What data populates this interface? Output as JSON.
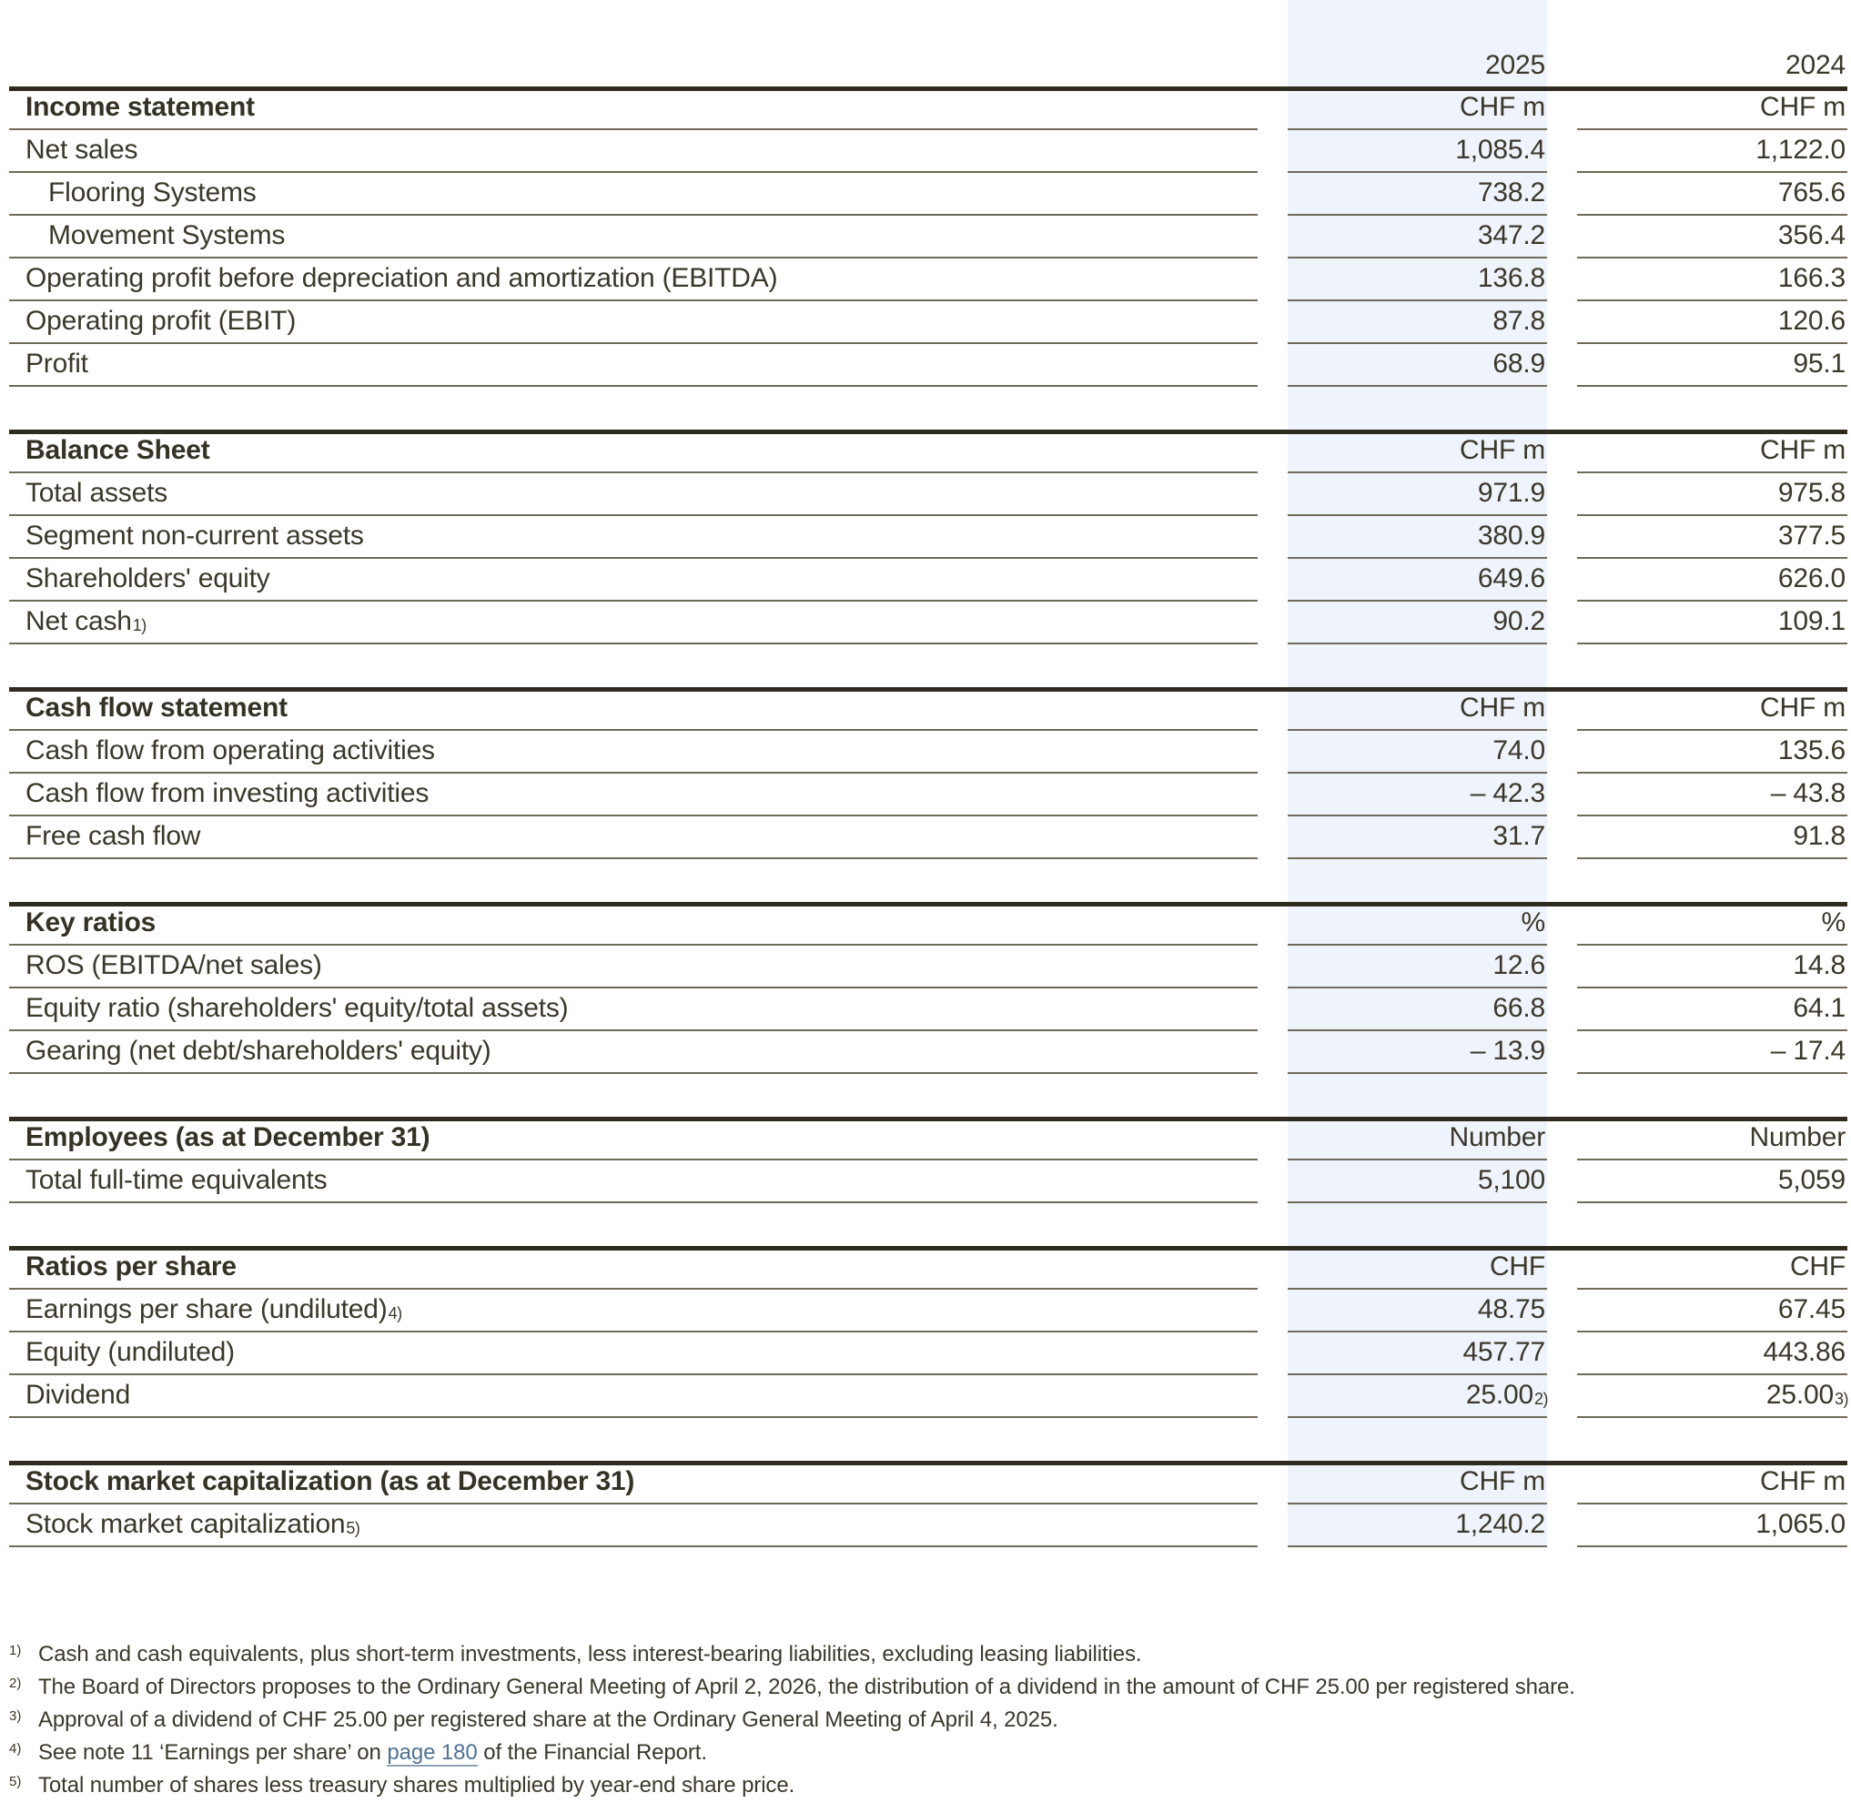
{
  "page": {
    "columns": {
      "year_2025": "2025",
      "year_2024": "2024"
    },
    "sections": [
      {
        "title": "Income statement",
        "unit": "CHF m",
        "rows": [
          {
            "label": "Net sales",
            "v2025": "1,085.4",
            "v2024": "1,122.0"
          },
          {
            "label": "Flooring Systems",
            "v2025": "738.2",
            "v2024": "765.6"
          },
          {
            "label": "Movement Systems",
            "v2025": "347.2",
            "v2024": "356.4"
          },
          {
            "label": "Operating profit before depreciation and amortization (EBITDA)",
            "v2025": "136.8",
            "v2024": "166.3"
          },
          {
            "label": "Operating profit (EBIT)",
            "v2025": "87.8",
            "v2024": "120.6"
          },
          {
            "label": "Profit",
            "v2025": "68.9",
            "v2024": "95.1"
          }
        ]
      },
      {
        "title": "Balance Sheet",
        "unit": "CHF m",
        "rows": [
          {
            "label": "Total assets",
            "v2025": "971.9",
            "v2024": "975.8"
          },
          {
            "label": "Segment non-current assets",
            "v2025": "380.9",
            "v2024": "377.5"
          },
          {
            "label": "Shareholders' equity",
            "v2025": "649.6",
            "v2024": "626.0"
          },
          {
            "label": "Net cash",
            "label_sup": "1)",
            "v2025": "90.2",
            "v2024": "109.1"
          }
        ]
      },
      {
        "title": "Cash flow statement",
        "unit": "CHF m",
        "rows": [
          {
            "label": "Cash flow from operating activities",
            "v2025": "74.0",
            "v2024": "135.6"
          },
          {
            "label": "Cash flow from investing activities",
            "v2025": "– 42.3",
            "v2024": "– 43.8"
          },
          {
            "label": "Free cash flow",
            "v2025": "31.7",
            "v2024": "91.8"
          }
        ]
      },
      {
        "title": "Key ratios",
        "unit": "%",
        "rows": [
          {
            "label": "ROS (EBITDA/net sales)",
            "v2025": "12.6",
            "v2024": "14.8"
          },
          {
            "label": "Equity ratio (shareholders' equity/total assets)",
            "v2025": "66.8",
            "v2024": "64.1"
          },
          {
            "label": "Gearing (net debt/shareholders' equity)",
            "v2025": "– 13.9",
            "v2024": "– 17.4"
          }
        ]
      },
      {
        "title": "Employees (as at December 31)",
        "unit": "Number",
        "rows": [
          {
            "label": "Total full-time equivalents",
            "v2025": "5,100",
            "v2024": "5,059"
          }
        ]
      },
      {
        "title": "Ratios per share",
        "unit": "CHF",
        "rows": [
          {
            "label": "Earnings per share (undiluted)",
            "label_sup": "4)",
            "v2025": "48.75",
            "v2024": "67.45"
          },
          {
            "label": "Equity (undiluted)",
            "v2025": "457.77",
            "v2024": "443.86"
          },
          {
            "label": "Dividend",
            "v2025": "25.00",
            "v2025_sup": "2)",
            "v2024": "25.00",
            "v2024_sup": "3)"
          }
        ]
      },
      {
        "title": "Stock market capitalization (as at December 31)",
        "unit": "CHF m",
        "rows": [
          {
            "label": "Stock market capitalization",
            "label_sup": "5)",
            "v2025": "1,240.2",
            "v2024": "1,065.0"
          }
        ]
      }
    ],
    "footnotes": {
      "fn1": {
        "marker": "1)",
        "text": "Cash and cash equivalents, plus short-term investments, less interest-bearing liabilities, excluding leasing liabilities."
      },
      "fn2": {
        "marker": "2)",
        "text": "The Board of Directors proposes to the Ordinary General Meeting of April 2, 2026, the distribution of a dividend in the amount of CHF 25.00 per registered share."
      },
      "fn3": {
        "marker": "3)",
        "text": "Approval of a dividend of CHF 25.00 per registered share at the Ordinary General Meeting of April 4, 2025."
      },
      "fn4": {
        "marker": "4)",
        "text_before": "See note 11 ‘Earnings per share’ on ",
        "link_text": "page 180",
        "text_after": " of the Financial Report."
      },
      "fn5": {
        "marker": "5)",
        "text": "Total number of shares less treasury shares multiplied by year-end share price."
      }
    },
    "colors": {
      "highlight_band": "#eff3fb",
      "text": "#3b372a",
      "thick_rule": "#2f2b20",
      "thin_rule": "#6f6a5a",
      "link": "#4e7191"
    }
  }
}
